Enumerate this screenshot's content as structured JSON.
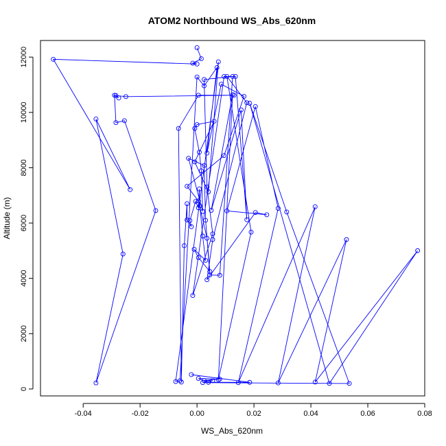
{
  "chart_data": {
    "type": "line",
    "title": "ATOM2 Northbound WS_Abs_620nm",
    "xlabel": "WS_Abs_620nm",
    "ylabel": "Altitude (m)",
    "xlim": [
      -0.055,
      0.08
    ],
    "ylim": [
      -250,
      12600
    ],
    "x_ticks": [
      -0.04,
      -0.02,
      0.0,
      0.02,
      0.04,
      0.06,
      0.08
    ],
    "x_tick_labels": [
      "-0.04",
      "-0.02",
      "0.00",
      "0.02",
      "0.04",
      "0.06",
      "0.08"
    ],
    "y_ticks": [
      0,
      2000,
      4000,
      6000,
      8000,
      10000,
      12000
    ],
    "y_tick_labels": [
      "0",
      "2000",
      "4000",
      "6000",
      "8000",
      "10000",
      "12000"
    ],
    "grid": false,
    "legend": "none",
    "series_color": "#0000ff",
    "markers": "open-circle",
    "series": [
      {
        "x": [
          0.0,
          0.0015,
          -0.0015,
          0.0,
          -0.0505,
          -0.0235,
          -0.0355,
          -0.026,
          -0.0355,
          -0.0145,
          -0.0255,
          -0.0285,
          -0.029,
          -0.0275,
          -0.0285,
          -0.025,
          0.013,
          0.0005,
          -0.0065,
          -0.0055,
          -0.0045,
          -0.0035,
          -0.0035,
          -0.002,
          -0.0025,
          -0.0005,
          0.0005,
          0.0008,
          0.001,
          0.002,
          0.003,
          -0.001,
          0.0005,
          0.0045,
          0.003,
          0.0025,
          -0.003,
          0.002,
          0.0015,
          0.0008,
          -0.0008,
          0.0,
          0.006,
          -0.0008,
          0.004,
          0.0075,
          -0.0075,
          -0.006,
          0.0,
          0.0025,
          0.007,
          0.0035,
          0.0085,
          0.0165,
          0.0095,
          -0.0035,
          0.0005,
          0.0035,
          0.0045,
          0.008,
          0.0125,
          0.0025,
          0.0035,
          0.0055,
          -0.0015,
          0.0095,
          0.0135,
          0.0175,
          0.0155,
          0.005,
          0.0125,
          0.0075,
          0.019,
          0.0105,
          0.0175,
          0.0055,
          0.0035,
          0.0205,
          0.0245,
          0.0105,
          0.0205,
          0.0285,
          0.0145,
          0.0415,
          0.0285,
          0.0525,
          0.0415,
          0.0775,
          0.0465,
          0.0185,
          0.0315,
          0.0535,
          0.002,
          0.0055,
          0.0025,
          0.008,
          0.0005,
          0.004,
          0.0185,
          -0.002
        ],
        "y": [
          12340,
          11940,
          11780,
          11750,
          11920,
          7210,
          9760,
          4880,
          220,
          6450,
          9700,
          9630,
          10620,
          10520,
          10610,
          10570,
          10620,
          10620,
          9420,
          250,
          5180,
          6700,
          6110,
          5870,
          6090,
          6780,
          6550,
          7230,
          6620,
          5530,
          4650,
          5050,
          4750,
          4250,
          6100,
          8080,
          8340,
          6420,
          7890,
          8560,
          9420,
          9560,
          9680,
          8210,
          7130,
          11830,
          270,
          300,
          11280,
          10960,
          11620,
          8530,
          11020,
          10580,
          8440,
          7330,
          6800,
          5450,
          4120,
          4110,
          11300,
          11190,
          7300,
          5610,
          3380,
          11300,
          11300,
          6120,
          10090,
          6460,
          10640,
          340,
          5670,
          11300,
          10350,
          5400,
          3950,
          6380,
          6300,
          6440,
          10210,
          6530,
          230,
          6590,
          220,
          5400,
          250,
          5000,
          200,
          10330,
          6400,
          200,
          230,
          300,
          310,
          360,
          380,
          240,
          240,
          520
        ]
      }
    ]
  }
}
